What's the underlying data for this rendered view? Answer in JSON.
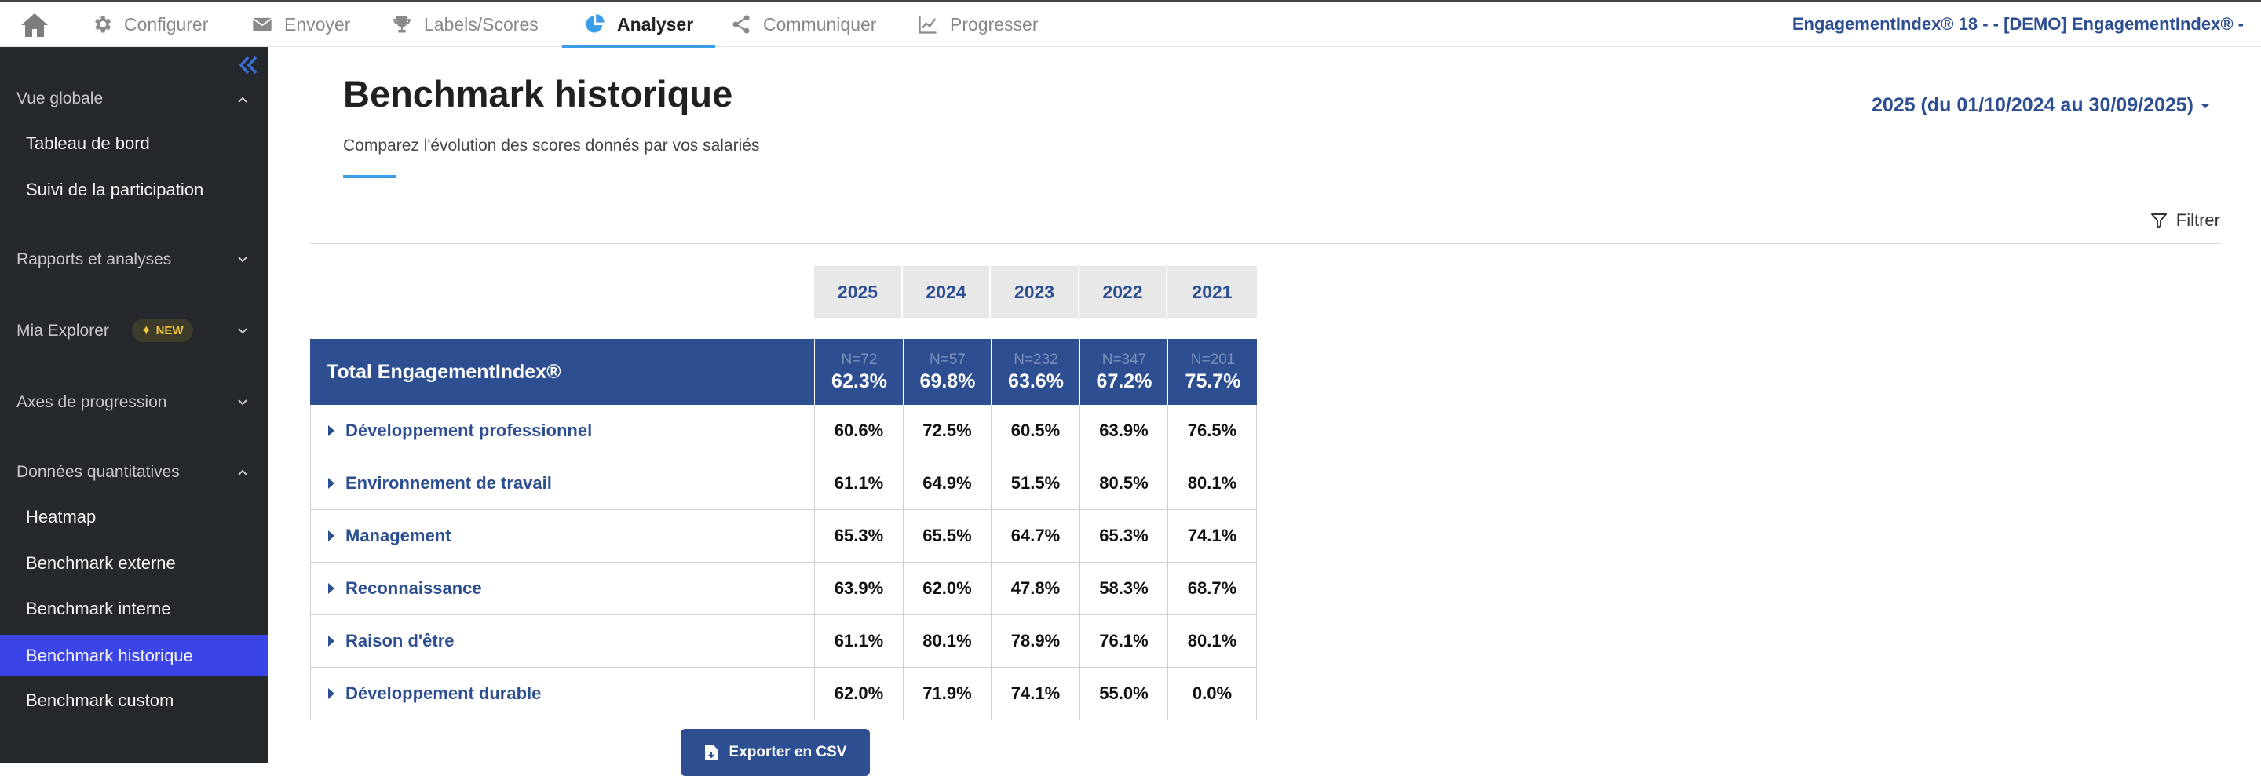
{
  "nav": {
    "tabs": [
      {
        "label": "Configurer",
        "icon": "gear-icon"
      },
      {
        "label": "Envoyer",
        "icon": "envelope-icon"
      },
      {
        "label": "Labels/Scores",
        "icon": "trophy-icon"
      },
      {
        "label": "Analyser",
        "icon": "pie-chart-icon"
      },
      {
        "label": "Communiquer",
        "icon": "share-icon"
      },
      {
        "label": "Progresser",
        "icon": "line-chart-icon"
      }
    ],
    "active_tab": "Analyser",
    "org_name": "EngagementIndex® 18 - - [DEMO] EngagementIndex® -"
  },
  "sidebar": {
    "sections": {
      "vue_globale": "Vue globale",
      "rapports": "Rapports et analyses",
      "mia": "Mia Explorer",
      "mia_badge": "NEW",
      "axes": "Axes de progression",
      "donnees": "Données quantitatives"
    },
    "items": {
      "tableau": "Tableau de bord",
      "suivi": "Suivi de la participation",
      "heatmap": "Heatmap",
      "bench_externe": "Benchmark externe",
      "bench_interne": "Benchmark interne",
      "bench_historique": "Benchmark historique",
      "bench_custom": "Benchmark custom"
    },
    "active_item": "Benchmark historique"
  },
  "page": {
    "title": "Benchmark historique",
    "subtitle": "Comparez l'évolution des scores donnés par vos salariés",
    "period": "2025 (du 01/10/2024 au 30/09/2025)",
    "filter_label": "Filtrer",
    "export_label": "Exporter en CSV"
  },
  "table": {
    "years": [
      "2025",
      "2024",
      "2023",
      "2022",
      "2021"
    ],
    "total": {
      "label": "Total EngagementIndex®",
      "n": [
        "N=72",
        "N=57",
        "N=232",
        "N=347",
        "N=201"
      ],
      "values": [
        "62.3%",
        "69.8%",
        "63.6%",
        "67.2%",
        "75.7%"
      ]
    },
    "rows": [
      {
        "label": "Développement professionnel",
        "values": [
          "60.6%",
          "72.5%",
          "60.5%",
          "63.9%",
          "76.5%"
        ]
      },
      {
        "label": "Environnement de travail",
        "values": [
          "61.1%",
          "64.9%",
          "51.5%",
          "80.5%",
          "80.1%"
        ]
      },
      {
        "label": "Management",
        "values": [
          "65.3%",
          "65.5%",
          "64.7%",
          "65.3%",
          "74.1%"
        ]
      },
      {
        "label": "Reconnaissance",
        "values": [
          "63.9%",
          "62.0%",
          "47.8%",
          "58.3%",
          "68.7%"
        ]
      },
      {
        "label": "Raison d'être",
        "values": [
          "61.1%",
          "80.1%",
          "78.9%",
          "76.1%",
          "80.1%"
        ]
      },
      {
        "label": "Développement durable",
        "values": [
          "62.0%",
          "71.9%",
          "74.1%",
          "55.0%",
          "0.0%"
        ]
      }
    ]
  },
  "colors": {
    "primary": "#2d4f91",
    "accent": "#3b9de8",
    "sidebar_bg": "#25282c",
    "sidebar_active": "#3b44e6"
  }
}
